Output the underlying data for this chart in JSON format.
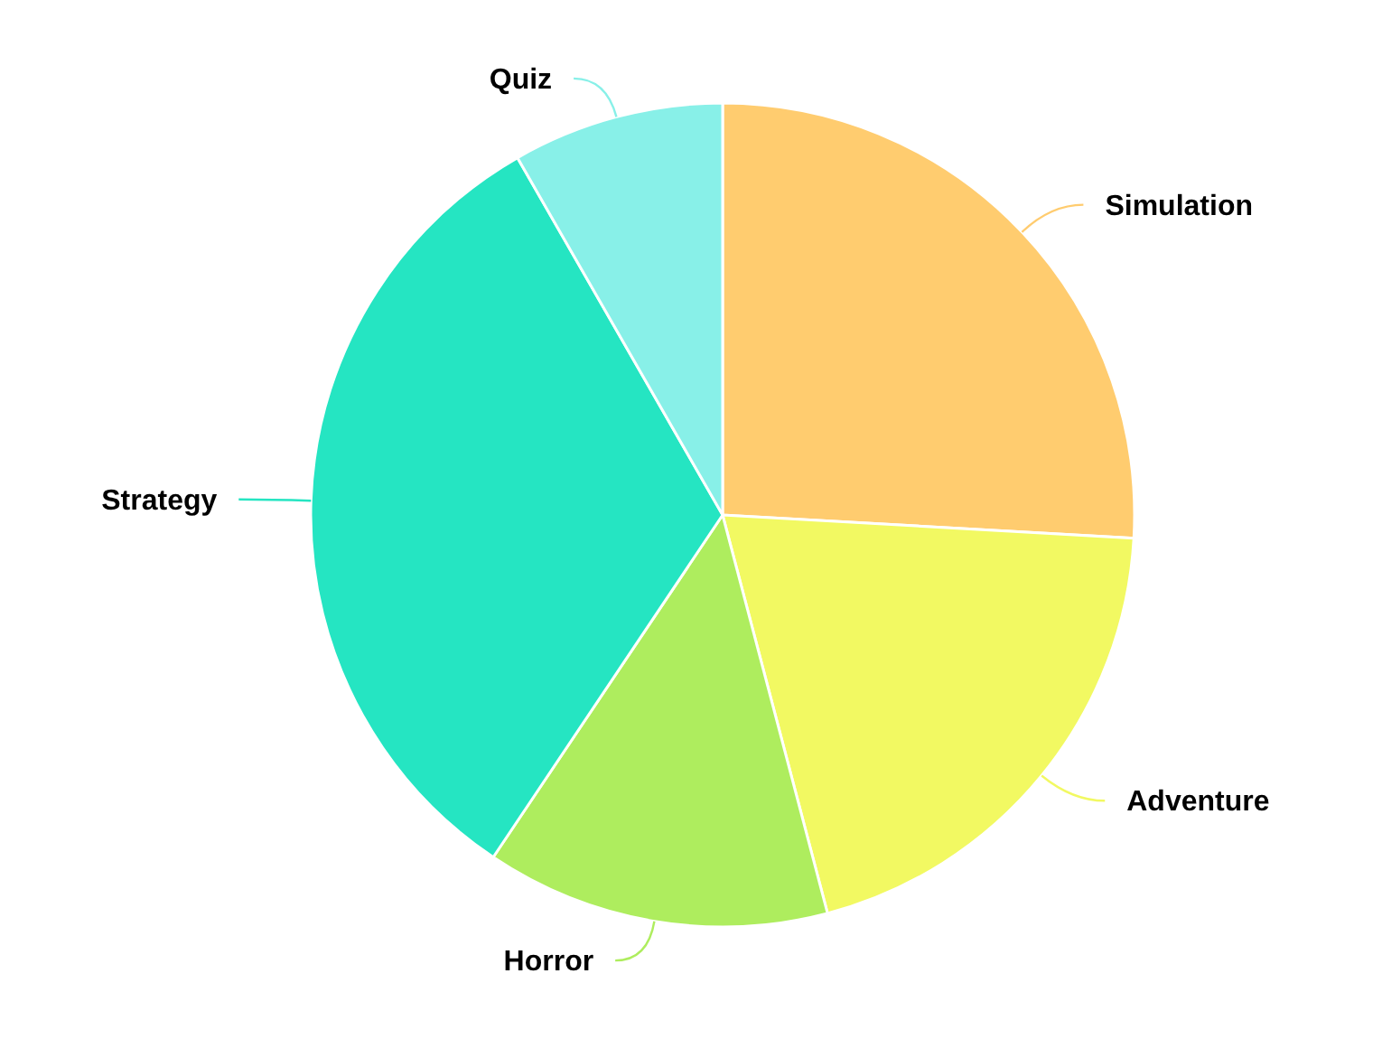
{
  "chart_data": {
    "type": "pie",
    "categories": [
      "Simulation",
      "Adventure",
      "Horror",
      "Strategy",
      "Quiz"
    ],
    "values": [
      25.9,
      20,
      13.5,
      32.3,
      8.3
    ],
    "colors": [
      "#ffcc6f",
      "#f2f962",
      "#aeed5e",
      "#25e5c2",
      "#88f0e8"
    ]
  }
}
